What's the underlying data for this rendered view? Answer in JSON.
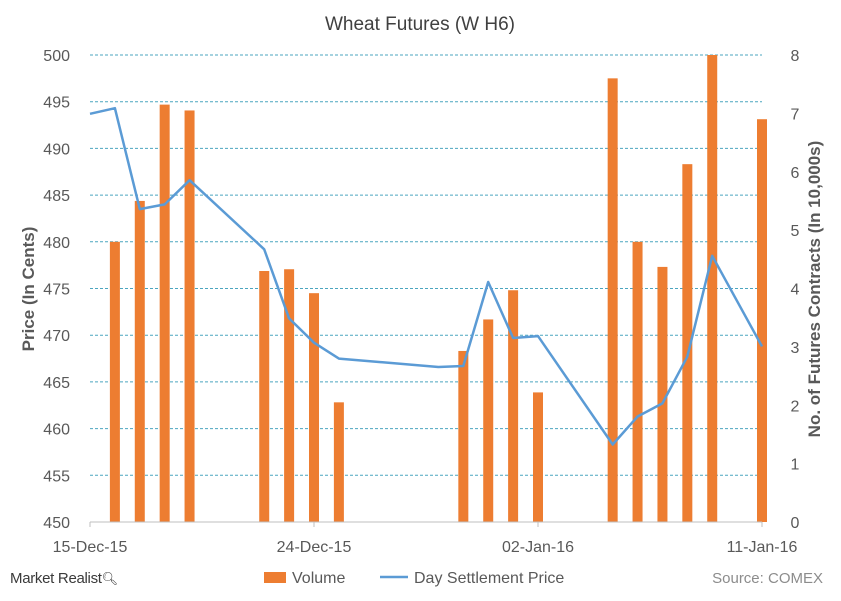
{
  "chart_data": {
    "type": "bar+line",
    "title": "Wheat  Futures  (W H6)",
    "ylabel_left": "Price (In Cents)",
    "ylabel_right": "No. of Futures Contracts (In 10,000s)",
    "ylim_left": [
      450,
      500
    ],
    "ylim_right": [
      0,
      8
    ],
    "yticks_left": [
      "450",
      "455",
      "460",
      "465",
      "470",
      "475",
      "480",
      "485",
      "490",
      "495",
      "500"
    ],
    "yticks_right": [
      "0",
      "1",
      "2",
      "3",
      "4",
      "5",
      "6",
      "7",
      "8"
    ],
    "xlim": [
      "2015-12-15",
      "2016-01-11"
    ],
    "xticks": [
      {
        "date": "2015-12-15",
        "label": "15-Dec-15"
      },
      {
        "date": "2015-12-24",
        "label": "24-Dec-15"
      },
      {
        "date": "2016-01-02",
        "label": "02-Jan-16"
      },
      {
        "date": "2016-01-11",
        "label": "11-Jan-16"
      }
    ],
    "grid": true,
    "legend_position": "bottom",
    "series": [
      {
        "name": "Volume",
        "type": "bar",
        "axis": "right",
        "color": "#ED7D31",
        "points": [
          {
            "x": "2015-12-16",
            "y": 4.8
          },
          {
            "x": "2015-12-17",
            "y": 5.5
          },
          {
            "x": "2015-12-18",
            "y": 7.15
          },
          {
            "x": "2015-12-19",
            "y": 7.05
          },
          {
            "x": "2015-12-22",
            "y": 4.3
          },
          {
            "x": "2015-12-23",
            "y": 4.33
          },
          {
            "x": "2015-12-24",
            "y": 3.92
          },
          {
            "x": "2015-12-25",
            "y": 2.05
          },
          {
            "x": "2015-12-30",
            "y": 2.93
          },
          {
            "x": "2015-12-31",
            "y": 3.47
          },
          {
            "x": "2016-01-01",
            "y": 3.97
          },
          {
            "x": "2016-01-02",
            "y": 2.22
          },
          {
            "x": "2016-01-05",
            "y": 7.6
          },
          {
            "x": "2016-01-06",
            "y": 4.8
          },
          {
            "x": "2016-01-07",
            "y": 4.37
          },
          {
            "x": "2016-01-08",
            "y": 6.13
          },
          {
            "x": "2016-01-09",
            "y": 8.0
          },
          {
            "x": "2016-01-11",
            "y": 6.9
          }
        ]
      },
      {
        "name": "Day Settlement Price",
        "type": "line",
        "axis": "left",
        "color": "#5B9BD5",
        "points": [
          {
            "x": "2015-12-15",
            "y": 493.7
          },
          {
            "x": "2015-12-16",
            "y": 494.3
          },
          {
            "x": "2015-12-17",
            "y": 483.5
          },
          {
            "x": "2015-12-18",
            "y": 484.0
          },
          {
            "x": "2015-12-19",
            "y": 486.6
          },
          {
            "x": "2015-12-22",
            "y": 479.2
          },
          {
            "x": "2015-12-23",
            "y": 471.8
          },
          {
            "x": "2015-12-24",
            "y": 469.2
          },
          {
            "x": "2015-12-25",
            "y": 467.5
          },
          {
            "x": "2015-12-29",
            "y": 466.6
          },
          {
            "x": "2015-12-30",
            "y": 466.7
          },
          {
            "x": "2015-12-31",
            "y": 475.7
          },
          {
            "x": "2016-01-01",
            "y": 469.7
          },
          {
            "x": "2016-01-02",
            "y": 469.9
          },
          {
            "x": "2016-01-05",
            "y": 458.3
          },
          {
            "x": "2016-01-06",
            "y": 461.3
          },
          {
            "x": "2016-01-07",
            "y": 462.7
          },
          {
            "x": "2016-01-08",
            "y": 467.7
          },
          {
            "x": "2016-01-09",
            "y": 478.5
          },
          {
            "x": "2016-01-11",
            "y": 468.8
          }
        ]
      }
    ]
  },
  "legend": {
    "volume_label": "Volume",
    "price_label": "Day Settlement Price"
  },
  "branding": {
    "logo_text": "Market Realist",
    "source": "Source: COMEX"
  }
}
